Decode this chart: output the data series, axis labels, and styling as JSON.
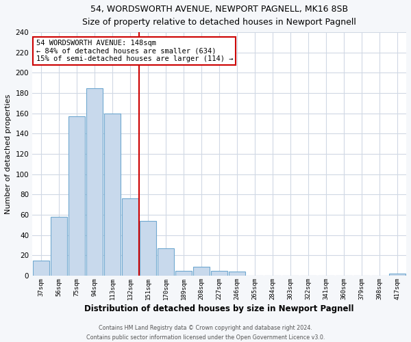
{
  "title": "54, WORDSWORTH AVENUE, NEWPORT PAGNELL, MK16 8SB",
  "subtitle": "Size of property relative to detached houses in Newport Pagnell",
  "xlabel": "Distribution of detached houses by size in Newport Pagnell",
  "ylabel": "Number of detached properties",
  "bar_labels": [
    "37sqm",
    "56sqm",
    "75sqm",
    "94sqm",
    "113sqm",
    "132sqm",
    "151sqm",
    "170sqm",
    "189sqm",
    "208sqm",
    "227sqm",
    "246sqm",
    "265sqm",
    "284sqm",
    "303sqm",
    "322sqm",
    "341sqm",
    "360sqm",
    "379sqm",
    "398sqm",
    "417sqm"
  ],
  "bar_values": [
    15,
    58,
    157,
    185,
    160,
    76,
    54,
    27,
    5,
    9,
    5,
    4,
    0,
    0,
    0,
    0,
    0,
    0,
    0,
    0,
    2
  ],
  "bar_color": "#c8d9ec",
  "bar_edge_color": "#6fa8d0",
  "vline_x_index": 5.5,
  "vline_color": "#cc0000",
  "annotation_title": "54 WORDSWORTH AVENUE: 148sqm",
  "annotation_line1": "← 84% of detached houses are smaller (634)",
  "annotation_line2": "15% of semi-detached houses are larger (114) →",
  "annotation_box_edge": "#cc0000",
  "ylim": [
    0,
    240
  ],
  "yticks": [
    0,
    20,
    40,
    60,
    80,
    100,
    120,
    140,
    160,
    180,
    200,
    220,
    240
  ],
  "footer1": "Contains HM Land Registry data © Crown copyright and database right 2024.",
  "footer2": "Contains public sector information licensed under the Open Government Licence v3.0.",
  "bg_color": "#f5f7fa",
  "plot_bg_color": "#ffffff",
  "grid_color": "#d0d8e4",
  "title_color": "#000000",
  "footer_color": "#555555"
}
